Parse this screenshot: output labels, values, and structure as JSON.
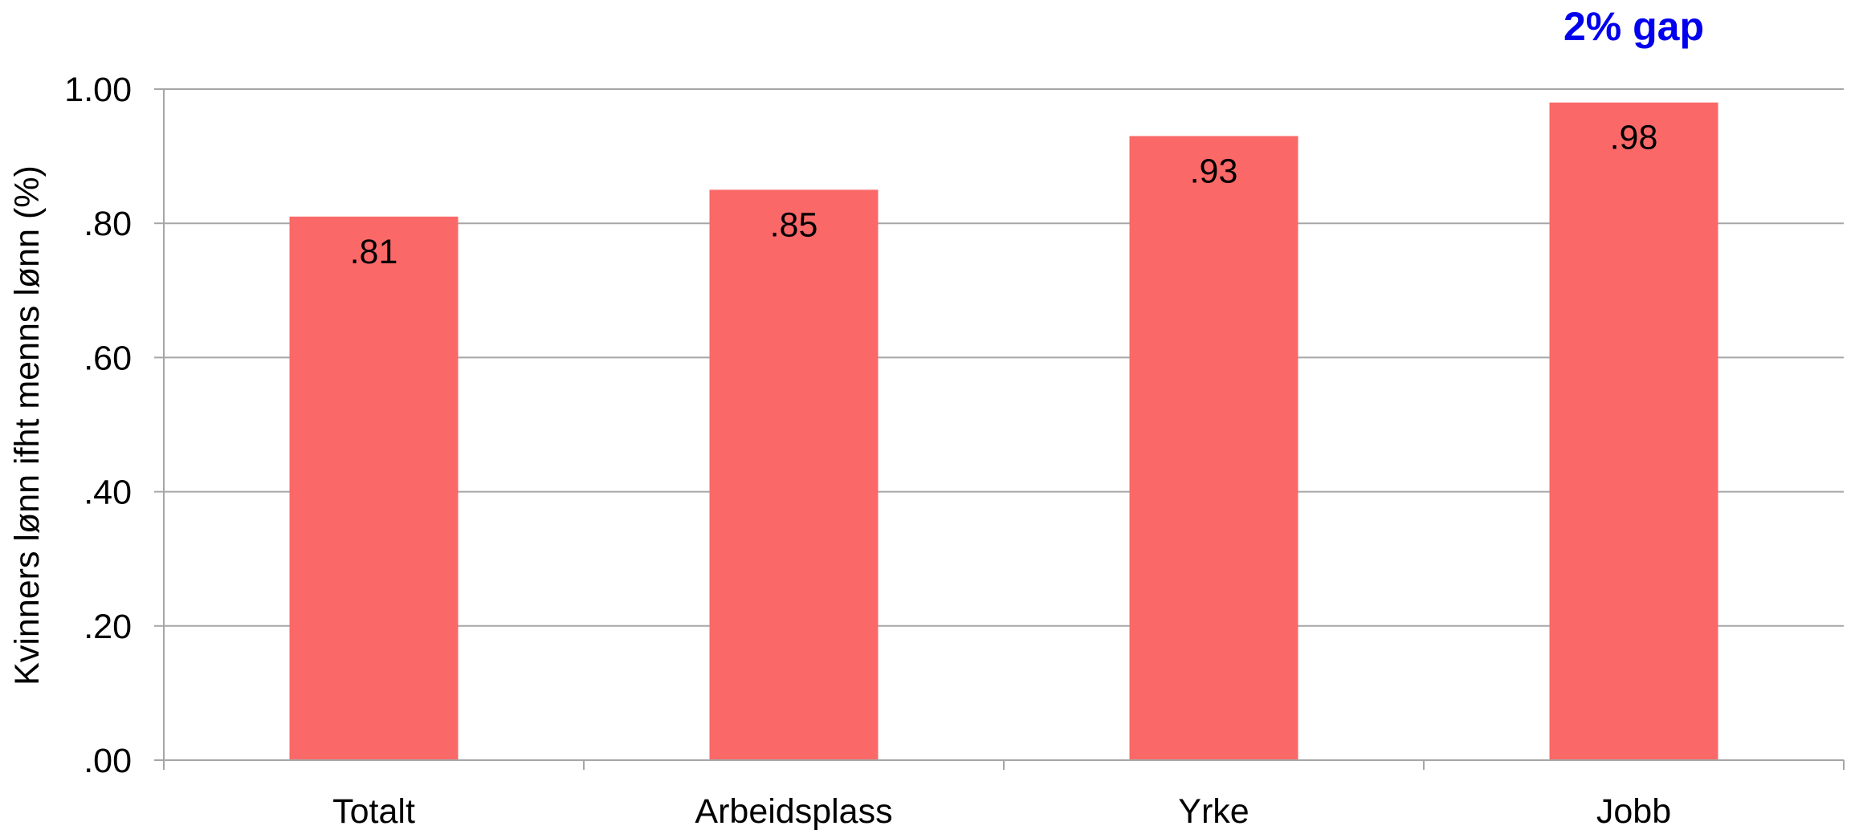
{
  "chart_data": {
    "type": "bar",
    "categories": [
      "Totalt",
      "Arbeidsplass",
      "Yrke",
      "Jobb"
    ],
    "values": [
      0.81,
      0.85,
      0.93,
      0.98
    ],
    "data_labels": [
      ".81",
      ".85",
      ".93",
      ".98"
    ],
    "title": "",
    "xlabel": "",
    "ylabel": "Kvinners lønn ifht menns lønn (%)",
    "ylim": [
      0,
      1
    ],
    "yticks": [
      0,
      0.2,
      0.4,
      0.6,
      0.8,
      1.0
    ],
    "ytick_labels": [
      ".00",
      ".20",
      ".40",
      ".60",
      ".80",
      "1.00"
    ],
    "grid": true,
    "legend": "none",
    "annotation": {
      "text": "2% gap",
      "category": "Jobb"
    },
    "colors": {
      "bar": "#FB6868",
      "annotation": "#0000EE",
      "grid": "#A6A6A6",
      "axis": "#A6A6A6"
    }
  }
}
